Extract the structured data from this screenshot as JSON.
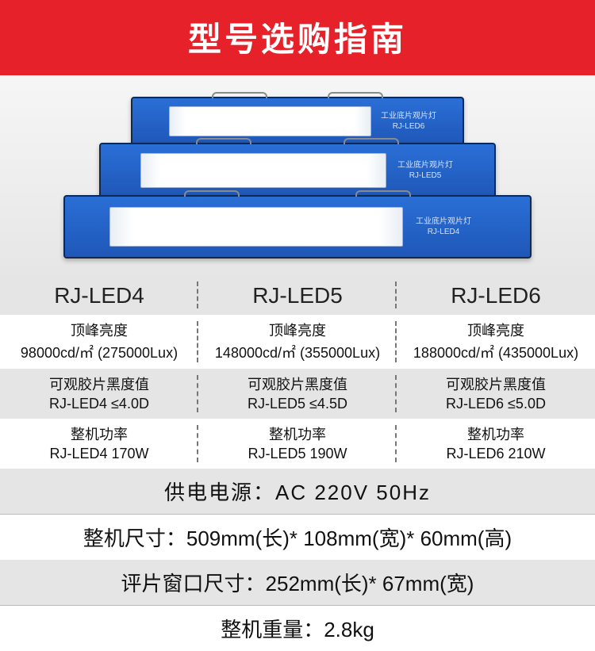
{
  "header": {
    "title": "型号选购指南"
  },
  "products": {
    "image_caption": "工业底片观片灯",
    "devices": [
      {
        "model": "RJ-LED6"
      },
      {
        "model": "RJ-LED5"
      },
      {
        "model": "RJ-LED4"
      }
    ]
  },
  "compare": {
    "columns": [
      {
        "model": "RJ-LED4",
        "brightness_label": "顶峰亮度",
        "brightness_value": "98000cd/㎡ (275000Lux)",
        "density_label": "可观胶片黑度值",
        "density_value": "RJ-LED4 ≤4.0D",
        "power_label": "整机功率",
        "power_value": "RJ-LED4 170W"
      },
      {
        "model": "RJ-LED5",
        "brightness_label": "顶峰亮度",
        "brightness_value": "148000cd/㎡ (355000Lux)",
        "density_label": "可观胶片黑度值",
        "density_value": "RJ-LED5 ≤4.5D",
        "power_label": "整机功率",
        "power_value": "RJ-LED5 190W"
      },
      {
        "model": "RJ-LED6",
        "brightness_label": "顶峰亮度",
        "brightness_value": "188000cd/㎡ (435000Lux)",
        "density_label": "可观胶片黑度值",
        "density_value": "RJ-LED6 ≤5.0D",
        "power_label": "整机功率",
        "power_value": "RJ-LED6 210W"
      }
    ]
  },
  "common": {
    "power_supply": "供电电源：AC 220V 50Hz",
    "dimensions": "整机尺寸：509mm(长)* 108mm(宽)* 60mm(高)",
    "window_size": "评片窗口尺寸：252mm(长)* 67mm(宽)",
    "weight": "整机重量：2.8kg"
  },
  "style": {
    "header_bg": "#e62129",
    "header_color": "#ffffff",
    "stripe_a": "#ffffff",
    "stripe_b": "#e5e5e5",
    "text_color": "#111111",
    "divider_color": "#777777",
    "header_fontsize": 42,
    "model_fontsize": 28,
    "spec_fontsize": 18,
    "fullrow_fontsize": 26
  }
}
